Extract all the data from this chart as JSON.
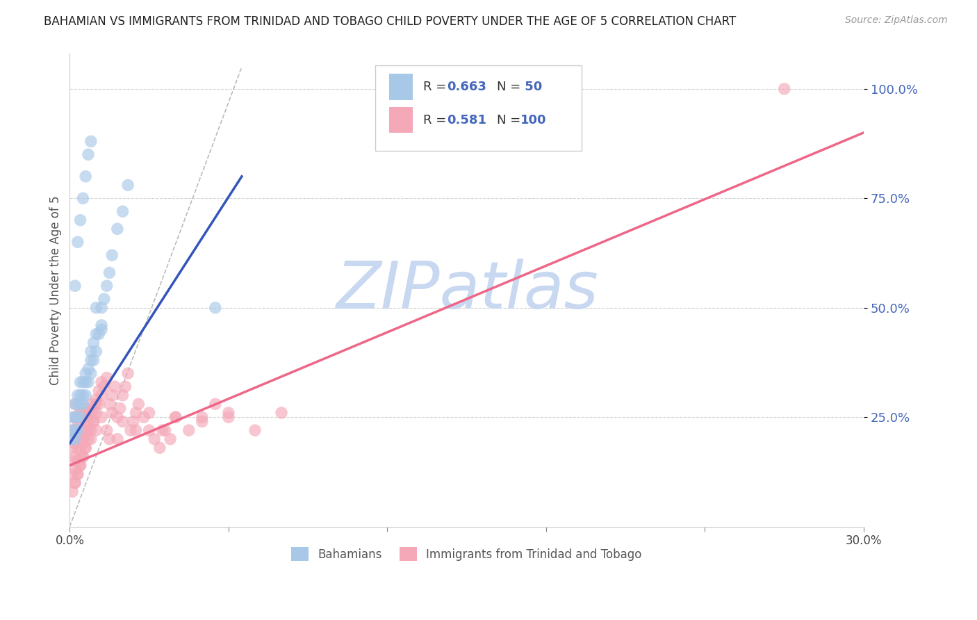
{
  "title": "BAHAMIAN VS IMMIGRANTS FROM TRINIDAD AND TOBAGO CHILD POVERTY UNDER THE AGE OF 5 CORRELATION CHART",
  "source": "Source: ZipAtlas.com",
  "ylabel": "Child Poverty Under the Age of 5",
  "xlim": [
    0.0,
    0.3
  ],
  "ylim": [
    0.0,
    1.08
  ],
  "yticks": [
    0.25,
    0.5,
    0.75,
    1.0
  ],
  "ytick_labels": [
    "25.0%",
    "50.0%",
    "75.0%",
    "100.0%"
  ],
  "xticks": [
    0.0,
    0.06,
    0.12,
    0.18,
    0.24,
    0.3
  ],
  "xtick_labels": [
    "0.0%",
    "",
    "",
    "",
    "",
    "30.0%"
  ],
  "blue_R": 0.663,
  "blue_N": 50,
  "pink_R": 0.581,
  "pink_N": 100,
  "blue_color": "#A8C8E8",
  "pink_color": "#F4A8B8",
  "blue_line_color": "#3355BB",
  "pink_line_color": "#EE6688",
  "blue_label": "Bahamians",
  "pink_label": "Immigrants from Trinidad and Tobago",
  "watermark": "ZIPatlas",
  "watermark_color": "#C8D8F0",
  "background_color": "#ffffff",
  "grid_color": "#cccccc",
  "title_color": "#222222",
  "blue_line_x0": 0.0,
  "blue_line_y0": 0.19,
  "blue_line_x1": 0.065,
  "blue_line_y1": 0.8,
  "pink_line_x0": 0.0,
  "pink_line_y0": 0.14,
  "pink_line_x1": 0.3,
  "pink_line_y1": 0.9,
  "dash_line_x0": 0.0,
  "dash_line_y0": 0.0,
  "dash_line_x1": 0.065,
  "dash_line_y1": 1.05,
  "blue_scatter_x": [
    0.001,
    0.001,
    0.001,
    0.002,
    0.002,
    0.002,
    0.002,
    0.003,
    0.003,
    0.003,
    0.003,
    0.004,
    0.004,
    0.004,
    0.004,
    0.005,
    0.005,
    0.005,
    0.006,
    0.006,
    0.006,
    0.007,
    0.007,
    0.008,
    0.008,
    0.008,
    0.009,
    0.009,
    0.01,
    0.01,
    0.011,
    0.012,
    0.012,
    0.013,
    0.014,
    0.015,
    0.016,
    0.018,
    0.02,
    0.022,
    0.002,
    0.003,
    0.004,
    0.005,
    0.006,
    0.007,
    0.008,
    0.01,
    0.012,
    0.055
  ],
  "blue_scatter_y": [
    0.2,
    0.22,
    0.25,
    0.2,
    0.22,
    0.25,
    0.28,
    0.22,
    0.25,
    0.28,
    0.3,
    0.25,
    0.28,
    0.3,
    0.33,
    0.28,
    0.3,
    0.33,
    0.3,
    0.33,
    0.35,
    0.33,
    0.36,
    0.35,
    0.38,
    0.4,
    0.38,
    0.42,
    0.4,
    0.44,
    0.44,
    0.46,
    0.5,
    0.52,
    0.55,
    0.58,
    0.62,
    0.68,
    0.72,
    0.78,
    0.55,
    0.65,
    0.7,
    0.75,
    0.8,
    0.85,
    0.88,
    0.5,
    0.45,
    0.5
  ],
  "pink_scatter_x": [
    0.001,
    0.001,
    0.001,
    0.001,
    0.001,
    0.002,
    0.002,
    0.002,
    0.002,
    0.002,
    0.002,
    0.003,
    0.003,
    0.003,
    0.003,
    0.003,
    0.004,
    0.004,
    0.004,
    0.004,
    0.004,
    0.005,
    0.005,
    0.005,
    0.005,
    0.006,
    0.006,
    0.006,
    0.006,
    0.007,
    0.007,
    0.007,
    0.008,
    0.008,
    0.008,
    0.009,
    0.009,
    0.01,
    0.01,
    0.011,
    0.011,
    0.012,
    0.012,
    0.013,
    0.014,
    0.015,
    0.016,
    0.017,
    0.018,
    0.019,
    0.02,
    0.021,
    0.022,
    0.023,
    0.024,
    0.025,
    0.026,
    0.028,
    0.03,
    0.032,
    0.034,
    0.036,
    0.038,
    0.04,
    0.045,
    0.05,
    0.055,
    0.06,
    0.07,
    0.08,
    0.002,
    0.003,
    0.004,
    0.005,
    0.006,
    0.007,
    0.008,
    0.009,
    0.01,
    0.012,
    0.014,
    0.016,
    0.018,
    0.02,
    0.025,
    0.03,
    0.035,
    0.04,
    0.05,
    0.06,
    0.001,
    0.002,
    0.003,
    0.004,
    0.005,
    0.006,
    0.008,
    0.01,
    0.015,
    0.27
  ],
  "pink_scatter_y": [
    0.12,
    0.15,
    0.18,
    0.2,
    0.22,
    0.1,
    0.13,
    0.16,
    0.19,
    0.22,
    0.25,
    0.12,
    0.15,
    0.18,
    0.21,
    0.24,
    0.14,
    0.17,
    0.2,
    0.23,
    0.26,
    0.16,
    0.19,
    0.22,
    0.25,
    0.18,
    0.21,
    0.24,
    0.27,
    0.2,
    0.23,
    0.26,
    0.22,
    0.25,
    0.28,
    0.24,
    0.27,
    0.26,
    0.29,
    0.28,
    0.31,
    0.3,
    0.33,
    0.32,
    0.34,
    0.28,
    0.3,
    0.32,
    0.25,
    0.27,
    0.3,
    0.32,
    0.35,
    0.22,
    0.24,
    0.26,
    0.28,
    0.25,
    0.22,
    0.2,
    0.18,
    0.22,
    0.2,
    0.25,
    0.22,
    0.25,
    0.28,
    0.25,
    0.22,
    0.26,
    0.28,
    0.22,
    0.26,
    0.2,
    0.25,
    0.22,
    0.26,
    0.24,
    0.28,
    0.25,
    0.22,
    0.26,
    0.2,
    0.24,
    0.22,
    0.26,
    0.22,
    0.25,
    0.24,
    0.26,
    0.08,
    0.1,
    0.12,
    0.14,
    0.16,
    0.18,
    0.2,
    0.22,
    0.2,
    1.0
  ]
}
